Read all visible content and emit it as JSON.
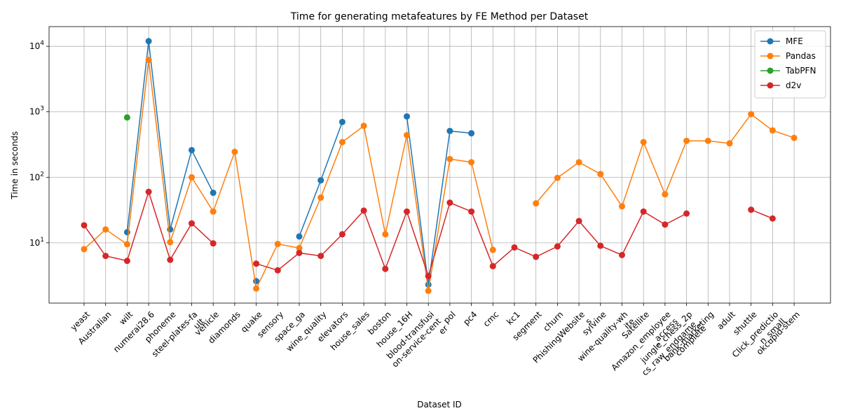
{
  "chart_data": {
    "type": "line",
    "title": "Time for generating metafeatures by FE Method per Dataset",
    "xlabel": "Dataset ID",
    "ylabel": "Time in seconds",
    "y_scale": "log",
    "ylim": [
      1.2,
      20000
    ],
    "grid": true,
    "legend_position": "top-right",
    "y_ticks": [
      {
        "value": 10,
        "label": "10^1"
      },
      {
        "value": 100,
        "label": "10^2"
      },
      {
        "value": 1000,
        "label": "10^3"
      },
      {
        "value": 10000,
        "label": "10^4"
      }
    ],
    "categories": [
      "yeast",
      "Australian",
      "wilt",
      "numerai28.6",
      "phoneme",
      "steel-plates-fa\nult",
      "vehicle",
      "diamonds",
      "quake",
      "sensory",
      "space_ga",
      "wine_quality",
      "elevators",
      "house_sales",
      "boston",
      "house_16H",
      "blood-transfusi\non-service-cent\ner",
      "pol",
      "pc4",
      "cmc",
      "kc1",
      "segment",
      "churn",
      "PhishingWebsite\ns",
      "sylvine",
      "wine-quality-wh\nite",
      "Satellite",
      "Amazon_employee\n_access",
      "jungle_chess_2p\ncs_raw_endgame_\ncomplete",
      "bank-marketing",
      "adult",
      "shuttle",
      "Click_predictio\nn_small",
      "okcupid-stem"
    ],
    "series": [
      {
        "name": "MFE",
        "color": "#1f77b4",
        "values": [
          null,
          null,
          14.5,
          12000,
          16,
          260,
          58,
          null,
          2.6,
          null,
          12.5,
          90,
          700,
          null,
          null,
          850,
          2.3,
          510,
          470,
          null,
          null,
          null,
          null,
          null,
          null,
          null,
          null,
          null,
          null,
          null,
          null,
          null,
          null,
          null
        ]
      },
      {
        "name": "Pandas",
        "color": "#ff7f0e",
        "values": [
          8,
          16,
          9.5,
          6200,
          10.2,
          100,
          30,
          245,
          2.0,
          9.6,
          8.3,
          49,
          345,
          610,
          13.5,
          440,
          1.85,
          190,
          170,
          7.8,
          null,
          40,
          98,
          170,
          112,
          36,
          345,
          55,
          360,
          360,
          330,
          920,
          520,
          400
        ]
      },
      {
        "name": "TabPFN",
        "color": "#2ca02c",
        "values": [
          null,
          null,
          820,
          null,
          null,
          null,
          null,
          null,
          null,
          null,
          null,
          null,
          null,
          null,
          null,
          null,
          null,
          null,
          null,
          null,
          null,
          null,
          null,
          null,
          null,
          null,
          null,
          null,
          null,
          null,
          null,
          null,
          null,
          null
        ]
      },
      {
        "name": "d2v",
        "color": "#d62728",
        "values": [
          18.5,
          6.3,
          5.3,
          60,
          5.5,
          19.8,
          9.8,
          null,
          4.8,
          3.8,
          7.0,
          6.3,
          13.5,
          31,
          4.0,
          30,
          3.1,
          41,
          30,
          4.4,
          8.5,
          6.1,
          8.8,
          21.5,
          9.0,
          6.5,
          30,
          19,
          28,
          null,
          null,
          32,
          23.5,
          null
        ]
      }
    ]
  }
}
